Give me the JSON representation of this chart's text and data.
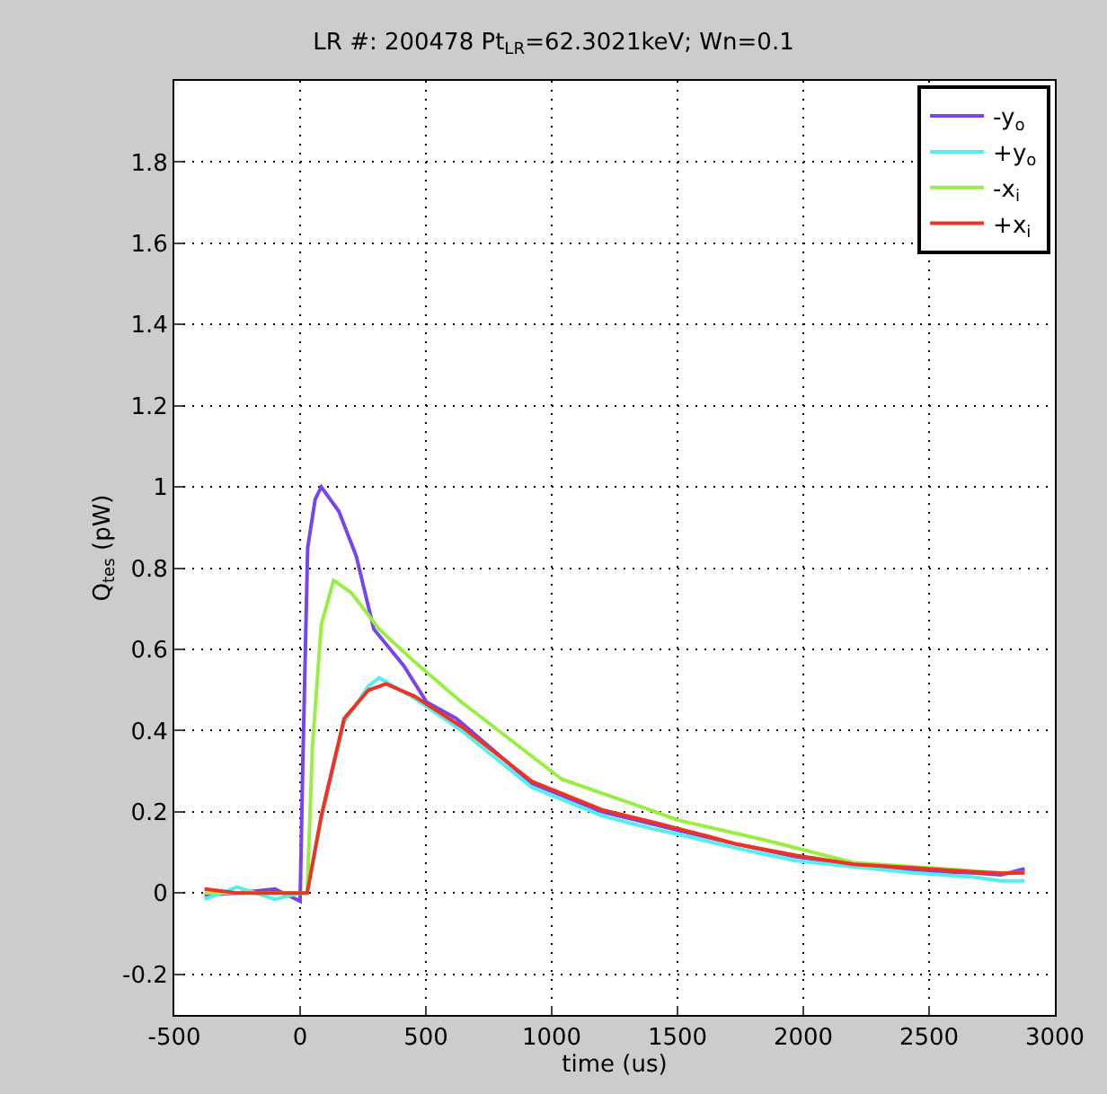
{
  "chart_data": {
    "type": "line",
    "title": "LR #: 200478 Pt$_{LR}$=62.3021keV; Wn=0.1",
    "xlabel": "time (us)",
    "ylabel": "Q$_{tes}$ (pW)",
    "xlim": [
      -500,
      3000
    ],
    "ylim": [
      -0.3,
      2
    ],
    "xticks": [
      -500,
      0,
      500,
      1000,
      1500,
      2000,
      2500,
      3000
    ],
    "yticks": [
      -0.2,
      0,
      0.2,
      0.4,
      0.6,
      0.8,
      1,
      1.2,
      1.4,
      1.6,
      1.8
    ],
    "grid": true,
    "legend": "top right",
    "line_style": "solid",
    "marker": "none",
    "series": [
      {
        "name": "-y$_{o}$",
        "color": "#7744ee",
        "x": [
          -380,
          -250,
          -100,
          0,
          10,
          30,
          60,
          84,
          154,
          223,
          293,
          412,
          503,
          621,
          922,
          1201,
          1501,
          1739,
          1969,
          2200,
          2437,
          2668,
          2786,
          2880
        ],
        "values": [
          -0.005,
          0.0,
          0.01,
          -0.02,
          0.3,
          0.85,
          0.97,
          1.0,
          0.94,
          0.83,
          0.65,
          0.56,
          0.47,
          0.43,
          0.27,
          0.2,
          0.155,
          0.12,
          0.09,
          0.07,
          0.055,
          0.05,
          0.045,
          0.06
        ]
      },
      {
        "name": "+y$_{o}$",
        "color": "#55eeee",
        "x": [
          -380,
          -250,
          -100,
          0,
          28,
          84,
          175,
          272,
          314,
          342,
          454,
          642,
          922,
          1201,
          1390,
          1501,
          1739,
          1969,
          2200,
          2437,
          2668,
          2786,
          2880
        ],
        "values": [
          -0.015,
          0.015,
          -0.015,
          0.0,
          0.0,
          0.18,
          0.42,
          0.51,
          0.53,
          0.52,
          0.48,
          0.4,
          0.26,
          0.19,
          0.16,
          0.145,
          0.11,
          0.08,
          0.065,
          0.05,
          0.04,
          0.03,
          0.03
        ]
      },
      {
        "name": "-x$_{i}$",
        "color": "#99ee44",
        "x": [
          -380,
          -250,
          -100,
          0,
          28,
          49,
          84,
          133,
          203,
          314,
          454,
          642,
          831,
          1041,
          1390,
          1501,
          1851,
          2200,
          2437,
          2668,
          2786,
          2880
        ],
        "values": [
          0.0,
          0.0,
          0.0,
          0.0,
          0.0,
          0.36,
          0.66,
          0.77,
          0.74,
          0.65,
          0.57,
          0.47,
          0.38,
          0.28,
          0.205,
          0.18,
          0.13,
          0.075,
          0.065,
          0.055,
          0.05,
          0.05
        ]
      },
      {
        "name": "+x$_{i}$",
        "color": "#ee3322",
        "x": [
          -380,
          -250,
          -100,
          0,
          28,
          84,
          175,
          272,
          342,
          454,
          642,
          922,
          1201,
          1432,
          1620,
          1739,
          1969,
          2200,
          2437,
          2668,
          2786,
          2880
        ],
        "values": [
          0.01,
          0.0,
          0.0,
          0.0,
          0.0,
          0.19,
          0.43,
          0.5,
          0.515,
          0.485,
          0.41,
          0.275,
          0.205,
          0.17,
          0.14,
          0.12,
          0.093,
          0.071,
          0.062,
          0.053,
          0.049,
          0.05
        ]
      }
    ]
  }
}
